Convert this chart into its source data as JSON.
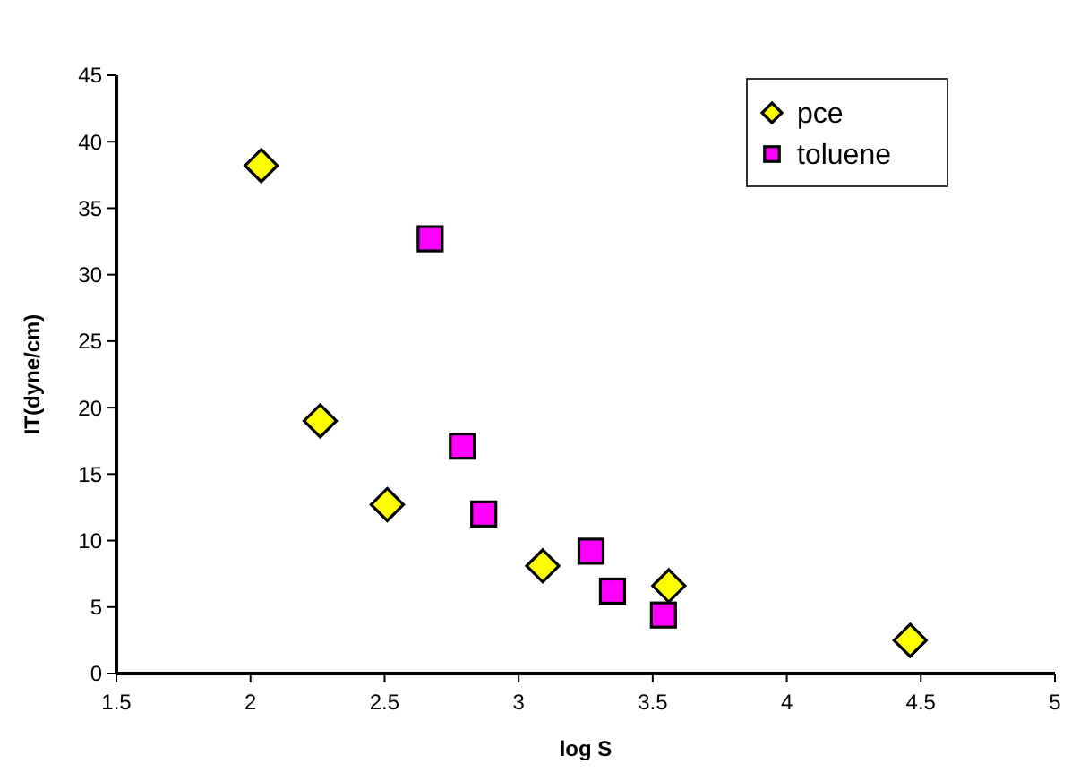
{
  "chart_data": {
    "type": "scatter",
    "xlabel": "log S",
    "ylabel": "IT(dyne/cm)",
    "xlim": [
      1.5,
      5
    ],
    "ylim": [
      0,
      45
    ],
    "xticks": [
      1.5,
      2,
      2.5,
      3,
      3.5,
      4,
      4.5,
      5
    ],
    "yticks": [
      0,
      5,
      10,
      15,
      20,
      25,
      30,
      35,
      40,
      45
    ],
    "grid": false,
    "legend": "top right",
    "series": [
      {
        "name": "pce",
        "color": "#ffff00",
        "marker": "diamond",
        "x": [
          2.04,
          2.26,
          2.51,
          3.09,
          3.56,
          4.46
        ],
        "values": [
          38.2,
          19,
          12.7,
          8.1,
          6.6,
          2.5
        ]
      },
      {
        "name": "toluene",
        "color": "#ff00ff",
        "marker": "square",
        "x": [
          2.67,
          2.79,
          2.87,
          3.27,
          3.35,
          3.54
        ],
        "values": [
          32.7,
          17.1,
          12,
          9.2,
          6.2,
          4.4
        ]
      }
    ]
  }
}
